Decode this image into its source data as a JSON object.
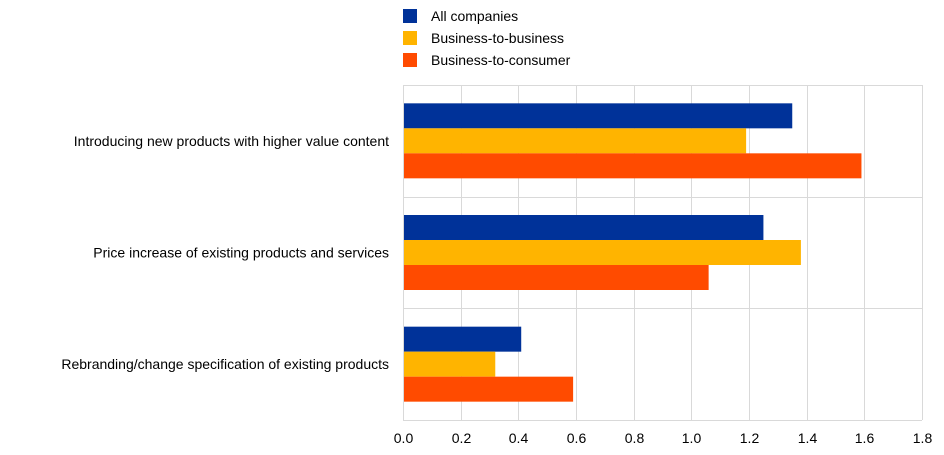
{
  "chart_data": {
    "type": "bar",
    "orientation": "horizontal",
    "title": "",
    "xlabel": "",
    "ylabel": "",
    "categories": [
      "Introducing new products with higher value content",
      "Price increase of existing products and services",
      "Rebranding/change specification of existing products"
    ],
    "series": [
      {
        "name": "All companies",
        "color": "#003299",
        "values": [
          1.35,
          1.25,
          0.41
        ]
      },
      {
        "name": "Business-to-business",
        "color": "#FFB400",
        "values": [
          1.19,
          1.38,
          0.32
        ]
      },
      {
        "name": "Business-to-consumer",
        "color": "#FF4B00",
        "values": [
          1.59,
          1.06,
          0.59
        ]
      }
    ],
    "xlim": [
      0,
      1.8
    ],
    "xticks": [
      "0.0",
      "0.2",
      "0.4",
      "0.6",
      "0.8",
      "1.0",
      "1.2",
      "1.4",
      "1.6",
      "1.8"
    ],
    "grid": "vertical",
    "legend_position": "top"
  }
}
